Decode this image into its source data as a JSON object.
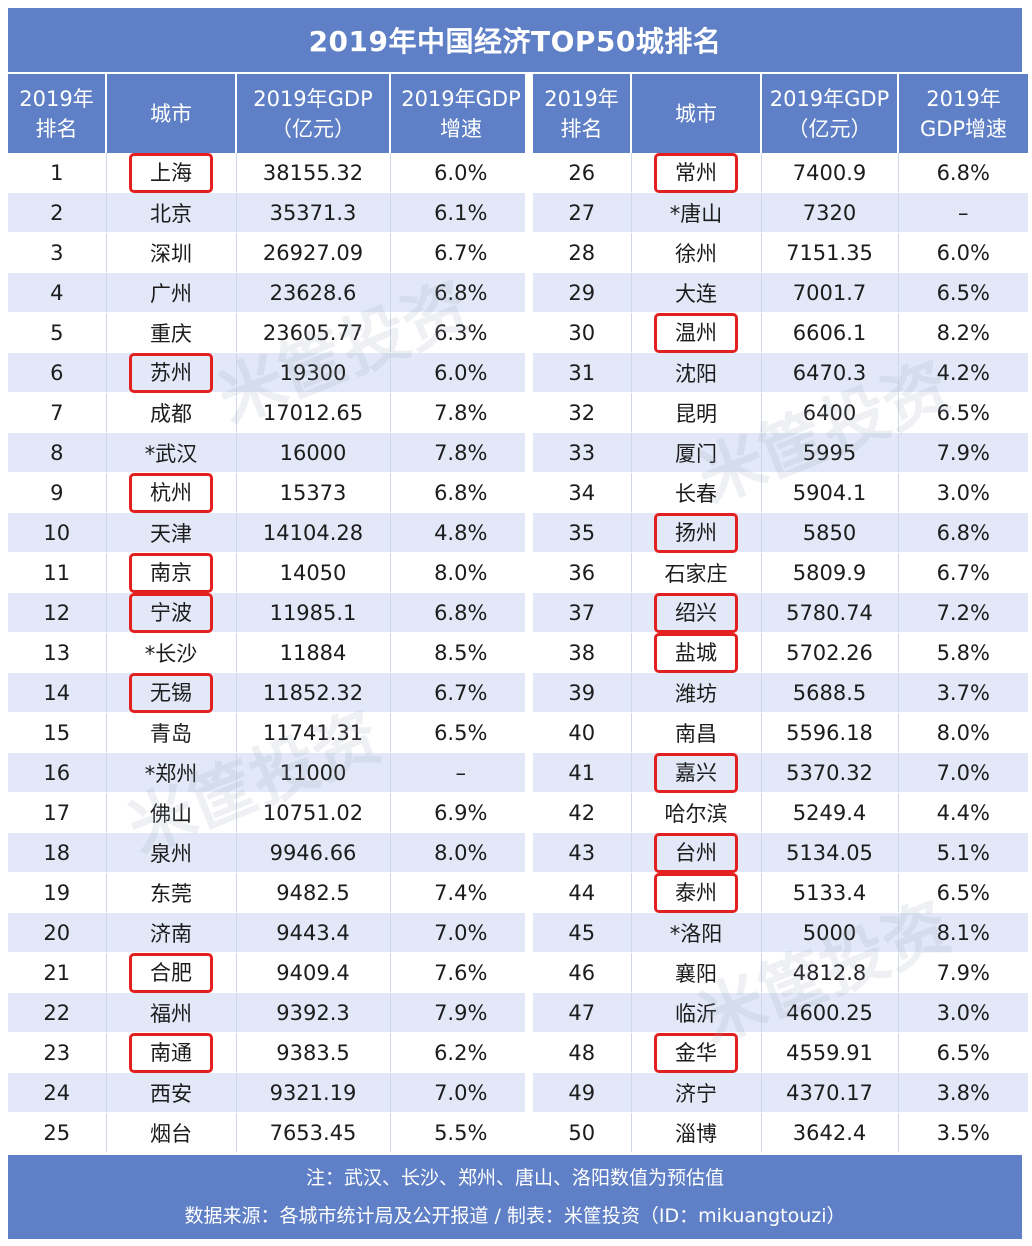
{
  "title": "2019年中国经济TOP50城排名",
  "highlight_color": "#e31f1f",
  "header_color": "#5f80c6",
  "left_headers": [
    "2019年\n排名",
    "城市",
    "2019年GDP\n（亿元）",
    "2019年GDP\n增速"
  ],
  "right_headers": [
    "2019年\n排名",
    "城市",
    "2019年GDP\n（亿元）",
    "2019年\nGDP增速"
  ],
  "left_rows": [
    {
      "rank": "1",
      "city": "上海",
      "gdp": "38155.32",
      "growth": "6.0%",
      "highlight": true
    },
    {
      "rank": "2",
      "city": "北京",
      "gdp": "35371.3",
      "growth": "6.1%",
      "highlight": false
    },
    {
      "rank": "3",
      "city": "深圳",
      "gdp": "26927.09",
      "growth": "6.7%",
      "highlight": false
    },
    {
      "rank": "4",
      "city": "广州",
      "gdp": "23628.6",
      "growth": "6.8%",
      "highlight": false
    },
    {
      "rank": "5",
      "city": "重庆",
      "gdp": "23605.77",
      "growth": "6.3%",
      "highlight": false
    },
    {
      "rank": "6",
      "city": "苏州",
      "gdp": "19300",
      "growth": "6.0%",
      "highlight": true
    },
    {
      "rank": "7",
      "city": "成都",
      "gdp": "17012.65",
      "growth": "7.8%",
      "highlight": false
    },
    {
      "rank": "8",
      "city": "*武汉",
      "gdp": "16000",
      "growth": "7.8%",
      "highlight": false
    },
    {
      "rank": "9",
      "city": "杭州",
      "gdp": "15373",
      "growth": "6.8%",
      "highlight": true
    },
    {
      "rank": "10",
      "city": "天津",
      "gdp": "14104.28",
      "growth": "4.8%",
      "highlight": false
    },
    {
      "rank": "11",
      "city": "南京",
      "gdp": "14050",
      "growth": "8.0%",
      "highlight": true
    },
    {
      "rank": "12",
      "city": "宁波",
      "gdp": "11985.1",
      "growth": "6.8%",
      "highlight": true
    },
    {
      "rank": "13",
      "city": "*长沙",
      "gdp": "11884",
      "growth": "8.5%",
      "highlight": false
    },
    {
      "rank": "14",
      "city": "无锡",
      "gdp": "11852.32",
      "growth": "6.7%",
      "highlight": true
    },
    {
      "rank": "15",
      "city": "青岛",
      "gdp": "11741.31",
      "growth": "6.5%",
      "highlight": false
    },
    {
      "rank": "16",
      "city": "*郑州",
      "gdp": "11000",
      "growth": "–",
      "highlight": false
    },
    {
      "rank": "17",
      "city": "佛山",
      "gdp": "10751.02",
      "growth": "6.9%",
      "highlight": false
    },
    {
      "rank": "18",
      "city": "泉州",
      "gdp": "9946.66",
      "growth": "8.0%",
      "highlight": false
    },
    {
      "rank": "19",
      "city": "东莞",
      "gdp": "9482.5",
      "growth": "7.4%",
      "highlight": false
    },
    {
      "rank": "20",
      "city": "济南",
      "gdp": "9443.4",
      "growth": "7.0%",
      "highlight": false
    },
    {
      "rank": "21",
      "city": "合肥",
      "gdp": "9409.4",
      "growth": "7.6%",
      "highlight": true
    },
    {
      "rank": "22",
      "city": "福州",
      "gdp": "9392.3",
      "growth": "7.9%",
      "highlight": false
    },
    {
      "rank": "23",
      "city": "南通",
      "gdp": "9383.5",
      "growth": "6.2%",
      "highlight": true
    },
    {
      "rank": "24",
      "city": "西安",
      "gdp": "9321.19",
      "growth": "7.0%",
      "highlight": false
    },
    {
      "rank": "25",
      "city": "烟台",
      "gdp": "7653.45",
      "growth": "5.5%",
      "highlight": false
    }
  ],
  "right_rows": [
    {
      "rank": "26",
      "city": "常州",
      "gdp": "7400.9",
      "growth": "6.8%",
      "highlight": true
    },
    {
      "rank": "27",
      "city": "*唐山",
      "gdp": "7320",
      "growth": "–",
      "highlight": false
    },
    {
      "rank": "28",
      "city": "徐州",
      "gdp": "7151.35",
      "growth": "6.0%",
      "highlight": false
    },
    {
      "rank": "29",
      "city": "大连",
      "gdp": "7001.7",
      "growth": "6.5%",
      "highlight": false
    },
    {
      "rank": "30",
      "city": "温州",
      "gdp": "6606.1",
      "growth": "8.2%",
      "highlight": true
    },
    {
      "rank": "31",
      "city": "沈阳",
      "gdp": "6470.3",
      "growth": "4.2%",
      "highlight": false
    },
    {
      "rank": "32",
      "city": "昆明",
      "gdp": "6400",
      "growth": "6.5%",
      "highlight": false
    },
    {
      "rank": "33",
      "city": "厦门",
      "gdp": "5995",
      "growth": "7.9%",
      "highlight": false
    },
    {
      "rank": "34",
      "city": "长春",
      "gdp": "5904.1",
      "growth": "3.0%",
      "highlight": false
    },
    {
      "rank": "35",
      "city": "扬州",
      "gdp": "5850",
      "growth": "6.8%",
      "highlight": true
    },
    {
      "rank": "36",
      "city": "石家庄",
      "gdp": "5809.9",
      "growth": "6.7%",
      "highlight": false
    },
    {
      "rank": "37",
      "city": "绍兴",
      "gdp": "5780.74",
      "growth": "7.2%",
      "highlight": true
    },
    {
      "rank": "38",
      "city": "盐城",
      "gdp": "5702.26",
      "growth": "5.8%",
      "highlight": true
    },
    {
      "rank": "39",
      "city": "潍坊",
      "gdp": "5688.5",
      "growth": "3.7%",
      "highlight": false
    },
    {
      "rank": "40",
      "city": "南昌",
      "gdp": "5596.18",
      "growth": "8.0%",
      "highlight": false
    },
    {
      "rank": "41",
      "city": "嘉兴",
      "gdp": "5370.32",
      "growth": "7.0%",
      "highlight": true
    },
    {
      "rank": "42",
      "city": "哈尔滨",
      "gdp": "5249.4",
      "growth": "4.4%",
      "highlight": false
    },
    {
      "rank": "43",
      "city": "台州",
      "gdp": "5134.05",
      "growth": "5.1%",
      "highlight": true
    },
    {
      "rank": "44",
      "city": "泰州",
      "gdp": "5133.4",
      "growth": "6.5%",
      "highlight": true
    },
    {
      "rank": "45",
      "city": "*洛阳",
      "gdp": "5000",
      "growth": "8.1%",
      "highlight": false
    },
    {
      "rank": "46",
      "city": "襄阳",
      "gdp": "4812.8",
      "growth": "7.9%",
      "highlight": false
    },
    {
      "rank": "47",
      "city": "临沂",
      "gdp": "4600.25",
      "growth": "3.0%",
      "highlight": false
    },
    {
      "rank": "48",
      "city": "金华",
      "gdp": "4559.91",
      "growth": "6.5%",
      "highlight": true
    },
    {
      "rank": "49",
      "city": "济宁",
      "gdp": "4370.17",
      "growth": "3.8%",
      "highlight": false
    },
    {
      "rank": "50",
      "city": "淄博",
      "gdp": "3642.4",
      "growth": "3.5%",
      "highlight": false
    }
  ],
  "footer": {
    "note": "注：武汉、长沙、郑州、唐山、洛阳数值为预估值",
    "source": "数据来源：各城市统计局及公开报道 / 制表：米筐投资（ID：mikuangtouzi）"
  }
}
